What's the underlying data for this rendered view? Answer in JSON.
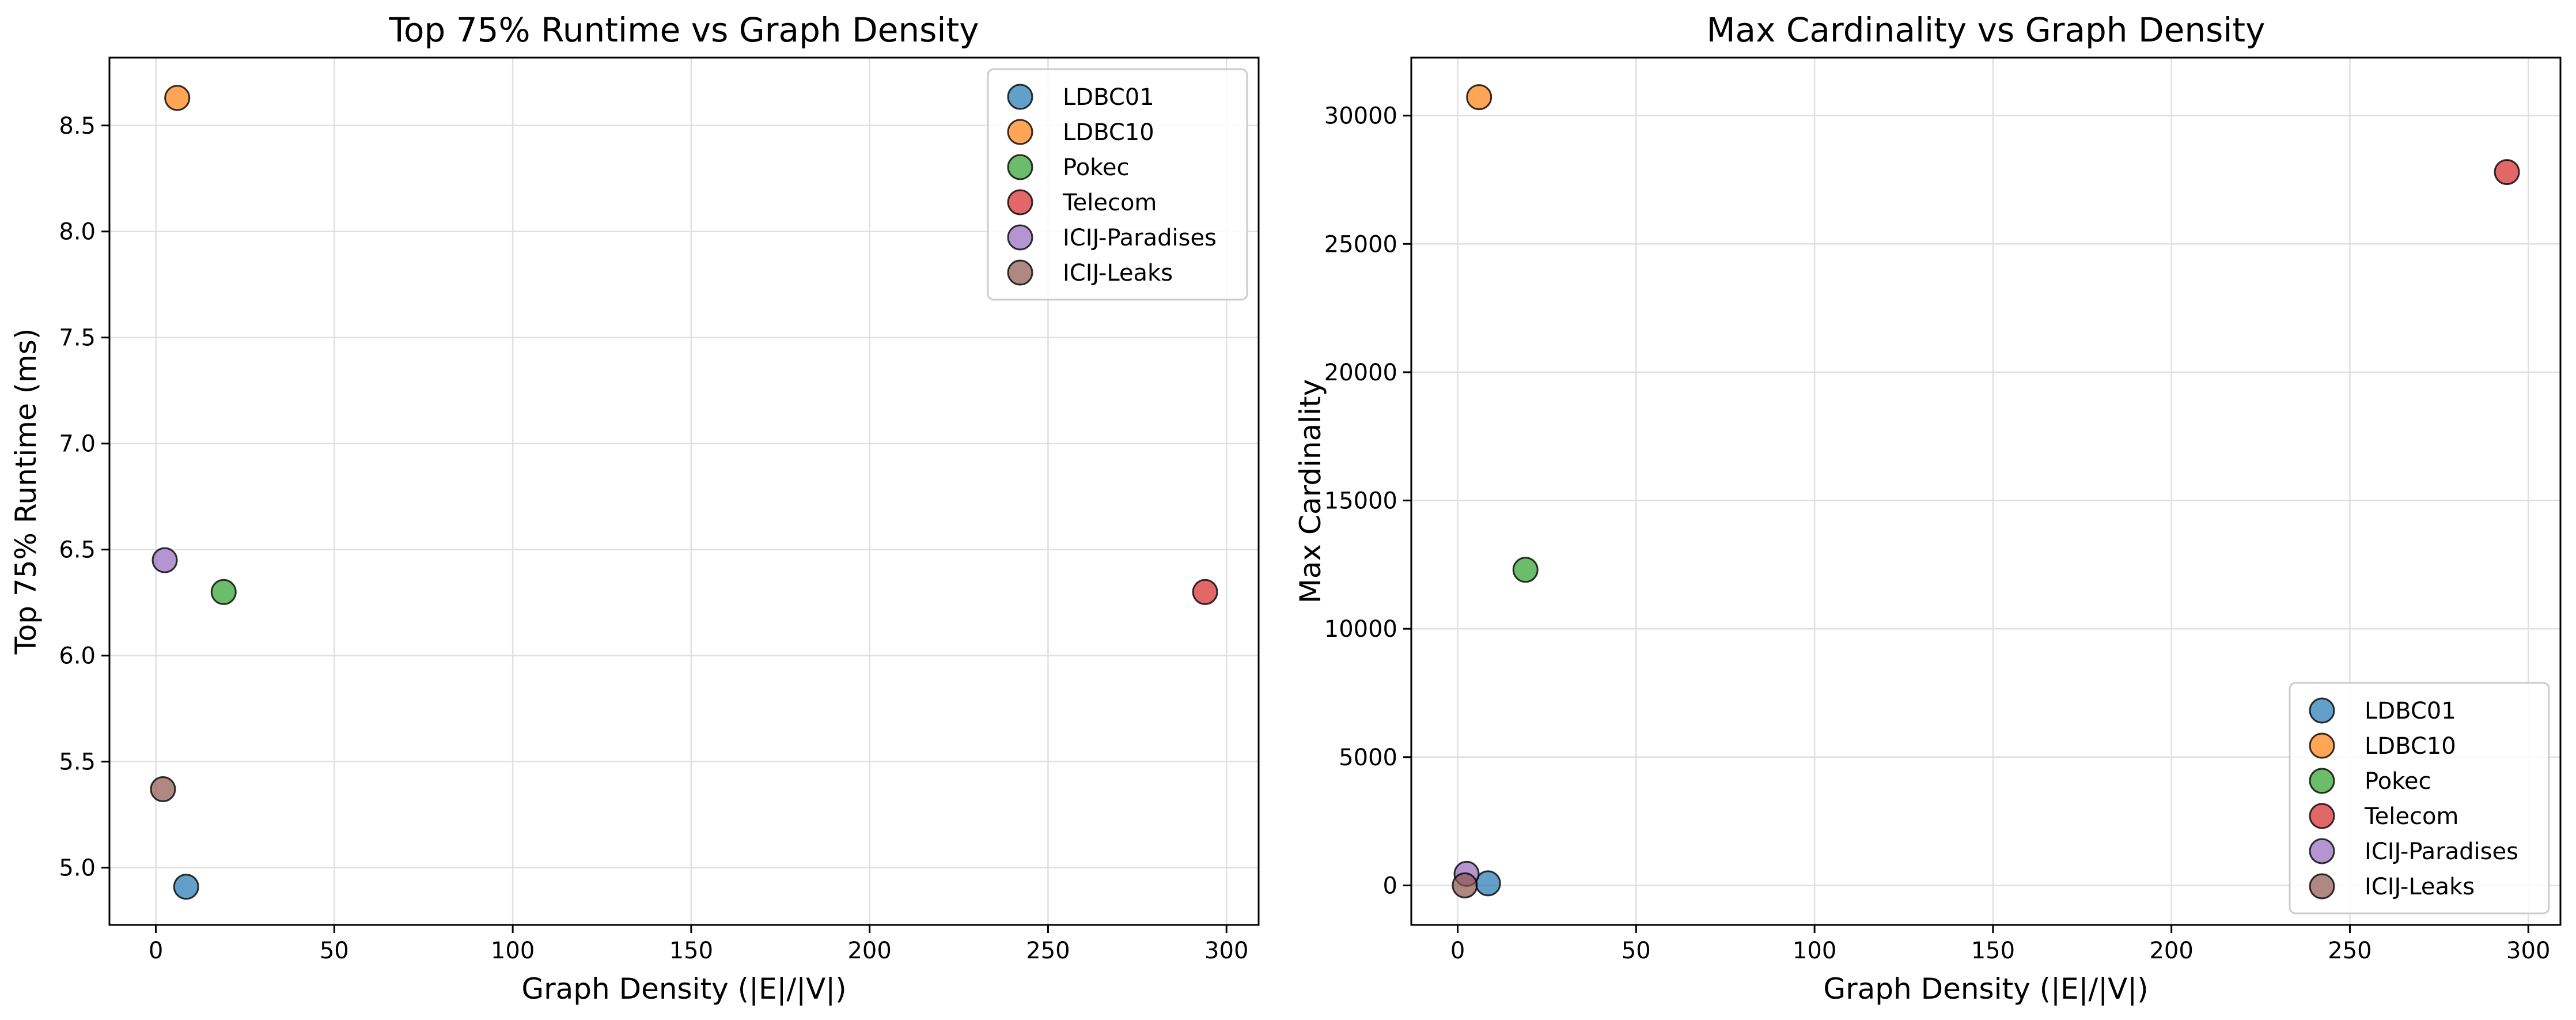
{
  "chart_data": [
    {
      "type": "scatter",
      "title": "Top 75% Runtime vs Graph Density",
      "xlabel": "Graph Density (|E|/|V|)",
      "ylabel": "Top 75% Runtime (ms)",
      "xlim": [
        -13,
        309
      ],
      "ylim": [
        4.73,
        8.82
      ],
      "xticks": [
        0,
        50,
        100,
        150,
        200,
        250,
        300
      ],
      "yticks": [
        5.0,
        5.5,
        6.0,
        6.5,
        7.0,
        7.5,
        8.0,
        8.5
      ],
      "ytick_format": "fixed1",
      "grid": true,
      "legend_position": "upper right",
      "series": [
        {
          "name": "LDBC01",
          "color": "#1f77b4",
          "x": [
            8.5
          ],
          "y": [
            4.91
          ]
        },
        {
          "name": "LDBC10",
          "color": "#ff7f0e",
          "x": [
            6.0
          ],
          "y": [
            8.63
          ]
        },
        {
          "name": "Pokec",
          "color": "#2ca02c",
          "x": [
            19.0
          ],
          "y": [
            6.3
          ]
        },
        {
          "name": "Telecom",
          "color": "#d62728",
          "x": [
            294.0
          ],
          "y": [
            6.3
          ]
        },
        {
          "name": "ICIJ-Paradises",
          "color": "#9467bd",
          "x": [
            2.5
          ],
          "y": [
            6.45
          ]
        },
        {
          "name": "ICIJ-Leaks",
          "color": "#8c564b",
          "x": [
            2.0
          ],
          "y": [
            5.37
          ]
        }
      ]
    },
    {
      "type": "scatter",
      "title": "Max Cardinality vs Graph Density",
      "xlabel": "Graph Density (|E|/|V|)",
      "ylabel": "Max Cardinality",
      "xlim": [
        -13,
        309
      ],
      "ylim": [
        -1540,
        32260
      ],
      "xticks": [
        0,
        50,
        100,
        150,
        200,
        250,
        300
      ],
      "yticks": [
        0,
        5000,
        10000,
        15000,
        20000,
        25000,
        30000
      ],
      "ytick_format": "int",
      "grid": true,
      "legend_position": "lower right",
      "series": [
        {
          "name": "LDBC01",
          "color": "#1f77b4",
          "x": [
            8.5
          ],
          "y": [
            80
          ]
        },
        {
          "name": "LDBC10",
          "color": "#ff7f0e",
          "x": [
            6.0
          ],
          "y": [
            30720
          ]
        },
        {
          "name": "Pokec",
          "color": "#2ca02c",
          "x": [
            19.0
          ],
          "y": [
            12300
          ]
        },
        {
          "name": "Telecom",
          "color": "#d62728",
          "x": [
            294.0
          ],
          "y": [
            27800
          ]
        },
        {
          "name": "ICIJ-Paradises",
          "color": "#9467bd",
          "x": [
            2.5
          ],
          "y": [
            450
          ]
        },
        {
          "name": "ICIJ-Leaks",
          "color": "#8c564b",
          "x": [
            2.0
          ],
          "y": [
            0
          ]
        }
      ]
    }
  ]
}
